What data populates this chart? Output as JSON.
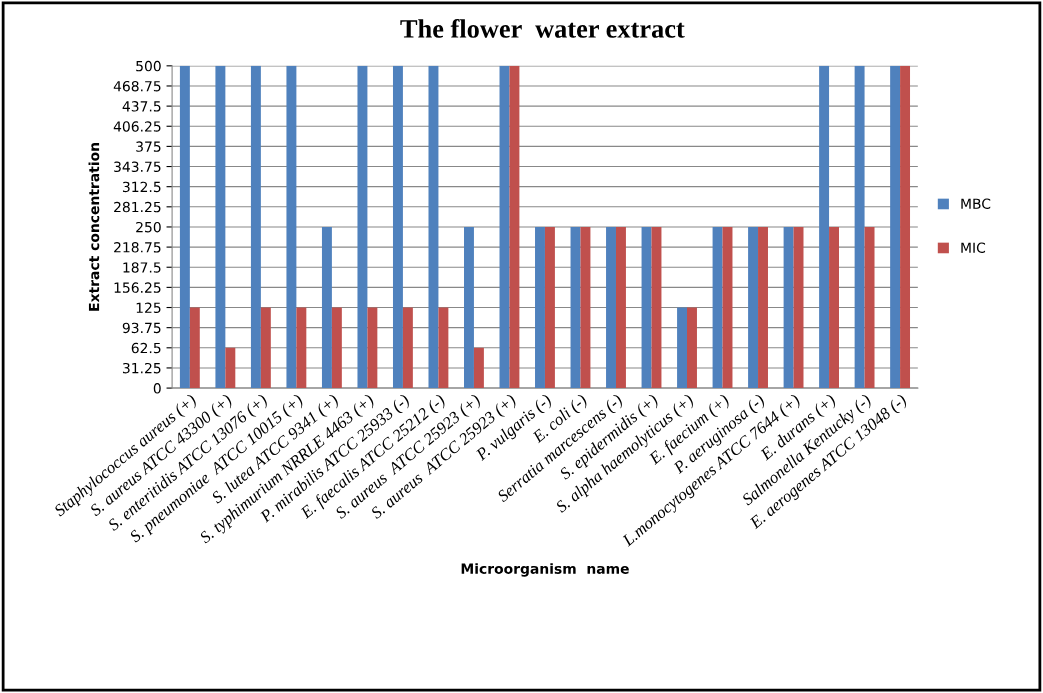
{
  "chart_data": {
    "type": "bar",
    "title": "The flower  water extract",
    "xlabel": "Microorganism  name",
    "ylabel": "Extract concentration",
    "categories": [
      "Staphylococcus aureus (+)",
      "S. aureus ATCC 43300 (+)",
      "S. enteritidis ATCC 13076 (+)",
      "S. pneumoniae  ATCC 10015 (+)",
      "S. lutea ATCC 9341 (+)",
      "S. typhimurium NRRLE 4463 (+)",
      "P. mirabilis ATCC 25933 (-)",
      "E. faecalis ATCC 25212 (-)",
      "S. aureus  ATCC 25923 (+)",
      "S. aureus  ATCC 25923 (+)",
      "P. vulgaris (-)",
      "E. coli (-)",
      "Serratia marcescens (-)",
      "S. epidermidis (+)",
      "S. alpha haemolyticus (+)",
      "E. faecium (+)",
      "P. aeruginosa (-)",
      "L.monocytogenes ATCC 7644 (+)",
      "E. durans (+)",
      "Salmonella Kentucky (-)",
      "E. aerogenes ATCC 13048 (-)"
    ],
    "series": [
      {
        "name": "MBC",
        "color": "#4f81bd",
        "values": [
          500,
          500,
          500,
          500,
          250,
          500,
          500,
          500,
          250,
          500,
          250,
          250,
          250,
          250,
          125,
          250,
          250,
          250,
          500,
          500,
          500
        ]
      },
      {
        "name": "MIC",
        "color": "#c0504d",
        "values": [
          125,
          62.5,
          125,
          125,
          125,
          125,
          125,
          125,
          62.5,
          500,
          250,
          250,
          250,
          250,
          125,
          250,
          250,
          250,
          250,
          250,
          500
        ]
      }
    ],
    "ylim": [
      0,
      500
    ],
    "yticks": [
      0,
      31.25,
      62.5,
      93.75,
      125,
      156.25,
      187.5,
      218.75,
      250,
      281.25,
      312.5,
      343.75,
      375,
      406.25,
      437.5,
      468.75,
      500
    ],
    "grid": "y",
    "legend": "right"
  }
}
